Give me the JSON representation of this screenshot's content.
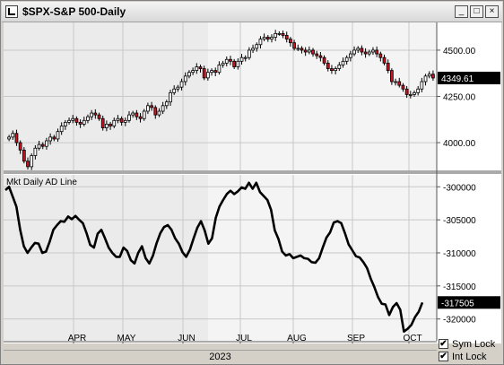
{
  "window": {
    "title": "$SPX-S&P 500-Daily",
    "buttons": {
      "minimize": "_",
      "maximize": "□",
      "close": "×"
    }
  },
  "footer": {
    "year": "2023",
    "sym_lock": "Sym Lock",
    "int_lock": "Int Lock"
  },
  "colors": {
    "up_candle": "#ffffff",
    "down_candle": "#cc1122",
    "line": "#000000",
    "last_value_bg": "#000000",
    "shade_left": "#ebebeb",
    "shade_right": "#f4f4f4"
  },
  "chart_data": [
    {
      "type": "candlestick",
      "title": "$SPX-S&P 500-Daily",
      "yticks": [
        "4500.00",
        "4250.00",
        "4000.00"
      ],
      "ylim": [
        3850,
        4650
      ],
      "last_value": "4349.61",
      "x_ticks": [
        "APR",
        "MAY",
        "JUN",
        "JUL",
        "AUG",
        "SEP",
        "OCT"
      ],
      "close_series": [
        4030,
        4050,
        4000,
        3960,
        3900,
        3870,
        3930,
        3970,
        3990,
        3980,
        4010,
        4030,
        4020,
        4060,
        4090,
        4110,
        4120,
        4130,
        4110,
        4100,
        4120,
        4140,
        4160,
        4150,
        4130,
        4080,
        4100,
        4090,
        4120,
        4130,
        4110,
        4120,
        4150,
        4160,
        4140,
        4130,
        4170,
        4200,
        4190,
        4150,
        4170,
        4200,
        4220,
        4270,
        4290,
        4300,
        4330,
        4360,
        4380,
        4390,
        4410,
        4400,
        4350,
        4380,
        4390,
        4380,
        4420,
        4430,
        4450,
        4440,
        4410,
        4440,
        4460,
        4460,
        4500,
        4510,
        4530,
        4560,
        4570,
        4560,
        4570,
        4590,
        4590,
        4580,
        4560,
        4540,
        4510,
        4510,
        4500,
        4490,
        4500,
        4480,
        4470,
        4460,
        4430,
        4400,
        4390,
        4400,
        4420,
        4440,
        4460,
        4480,
        4500,
        4510,
        4490,
        4480,
        4490,
        4500,
        4480,
        4460,
        4430,
        4390,
        4330,
        4330,
        4310,
        4290,
        4260,
        4260,
        4270,
        4290,
        4330,
        4360,
        4370,
        4349.61
      ]
    },
    {
      "type": "line",
      "title": "Mkt Daily AD Line",
      "yticks": [
        "-300000",
        "-305000",
        "-310000",
        "-315000",
        "-320000"
      ],
      "ylim": [
        -323300,
        -298200
      ],
      "last_value": "-317505",
      "x_ticks": [
        "APR",
        "MAY",
        "JUN",
        "JUL",
        "AUG",
        "SEP",
        "OCT"
      ],
      "values": [
        -300500,
        -300000,
        -301500,
        -303000,
        -306500,
        -309000,
        -310000,
        -309200,
        -308500,
        -308600,
        -310000,
        -309800,
        -308300,
        -306500,
        -305800,
        -305200,
        -305300,
        -304500,
        -304900,
        -304400,
        -305000,
        -305500,
        -307000,
        -308800,
        -309200,
        -307100,
        -306500,
        -307800,
        -309200,
        -310000,
        -310600,
        -310600,
        -309200,
        -309700,
        -311100,
        -311600,
        -310000,
        -309000,
        -310800,
        -311600,
        -310400,
        -308500,
        -307000,
        -306100,
        -305800,
        -306500,
        -307800,
        -308600,
        -309900,
        -310600,
        -309500,
        -307800,
        -306200,
        -305200,
        -306600,
        -308600,
        -307800,
        -304700,
        -303000,
        -302000,
        -301100,
        -300600,
        -301100,
        -300700,
        -300100,
        -300300,
        -299400,
        -300300,
        -299400,
        -300800,
        -301400,
        -302000,
        -303500,
        -306600,
        -307900,
        -309800,
        -310400,
        -310200,
        -310800,
        -310600,
        -310400,
        -310800,
        -310900,
        -311400,
        -311500,
        -310800,
        -309200,
        -307700,
        -306900,
        -305400,
        -305200,
        -305500,
        -307000,
        -308700,
        -309600,
        -310500,
        -310700,
        -311400,
        -312300,
        -313900,
        -315200,
        -316700,
        -317700,
        -317800,
        -319400,
        -318200,
        -317600,
        -318600,
        -321900,
        -321500,
        -320900,
        -319700,
        -318900,
        -317505
      ]
    }
  ]
}
